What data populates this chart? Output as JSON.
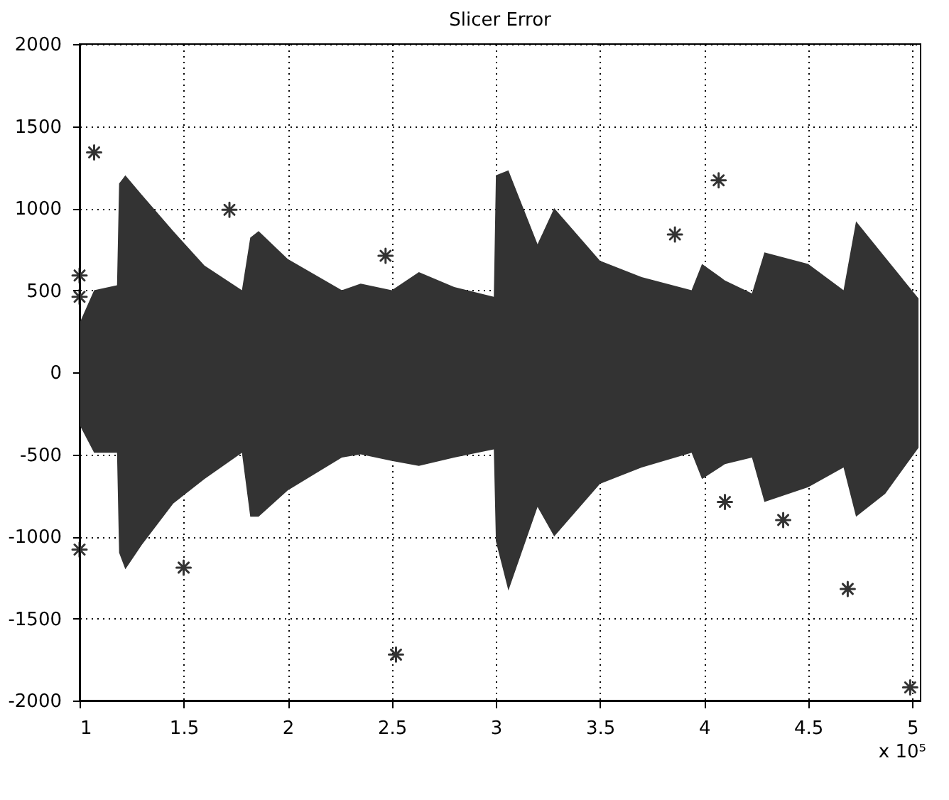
{
  "chart_data": {
    "type": "scatter",
    "title": "Slicer Error",
    "xlim": [
      1,
      5.04
    ],
    "xticks": [
      1,
      1.5,
      2,
      2.5,
      3,
      3.5,
      4,
      4.5,
      5
    ],
    "ylim": [
      -2000,
      2000
    ],
    "yticks": [
      -2000,
      -1500,
      -1000,
      -500,
      0,
      500,
      1000,
      1500,
      2000
    ],
    "grid": true,
    "marker": "cross",
    "annotations": [
      "x 10⁵"
    ],
    "series": [
      {
        "color": "#333333",
        "x": [
          1.0,
          1.07,
          1.18,
          1.19,
          1.22,
          1.3,
          1.45,
          1.6,
          1.78,
          1.82,
          1.86,
          2.0,
          2.26,
          2.35,
          2.5,
          2.63,
          2.8,
          2.99,
          3.0,
          3.06,
          3.2,
          3.28,
          3.5,
          3.7,
          3.94,
          3.99,
          4.1,
          4.23,
          4.29,
          4.5,
          4.67,
          4.73,
          4.87,
          5.03
        ],
        "values": [
          null,
          null,
          null,
          null,
          null,
          null,
          null,
          null,
          null,
          null,
          null,
          null,
          null,
          null,
          null,
          null,
          null,
          null,
          null,
          null,
          null,
          null,
          null,
          null,
          null,
          null,
          null,
          null,
          null,
          null,
          null,
          null,
          null,
          null
        ],
        "upper": [
          300,
          500,
          530,
          1150,
          1200,
          1080,
          860,
          650,
          500,
          820,
          860,
          690,
          500,
          540,
          500,
          610,
          520,
          460,
          1200,
          1230,
          780,
          1000,
          680,
          580,
          500,
          660,
          560,
          480,
          730,
          660,
          500,
          920,
          700,
          450
        ],
        "lower": [
          -320,
          -490,
          -490,
          -1100,
          -1200,
          -1050,
          -800,
          -650,
          -490,
          -880,
          -880,
          -720,
          -520,
          -500,
          -540,
          -570,
          -520,
          -470,
          -1030,
          -1330,
          -820,
          -1000,
          -680,
          -580,
          -490,
          -650,
          -560,
          -520,
          -790,
          -700,
          -580,
          -880,
          -740,
          -460
        ]
      },
      {
        "color": "#333333",
        "x": [
          1.07,
          1.0,
          1.0,
          1.0,
          1.5,
          1.72,
          2.47,
          2.52,
          4.07,
          3.86,
          4.1,
          4.38,
          4.69,
          4.99
        ],
        "values": [
          1340,
          590,
          460,
          -1080,
          -1190,
          990,
          710,
          -1720,
          1170,
          840,
          -790,
          -900,
          -1320,
          -1920
        ]
      }
    ]
  }
}
